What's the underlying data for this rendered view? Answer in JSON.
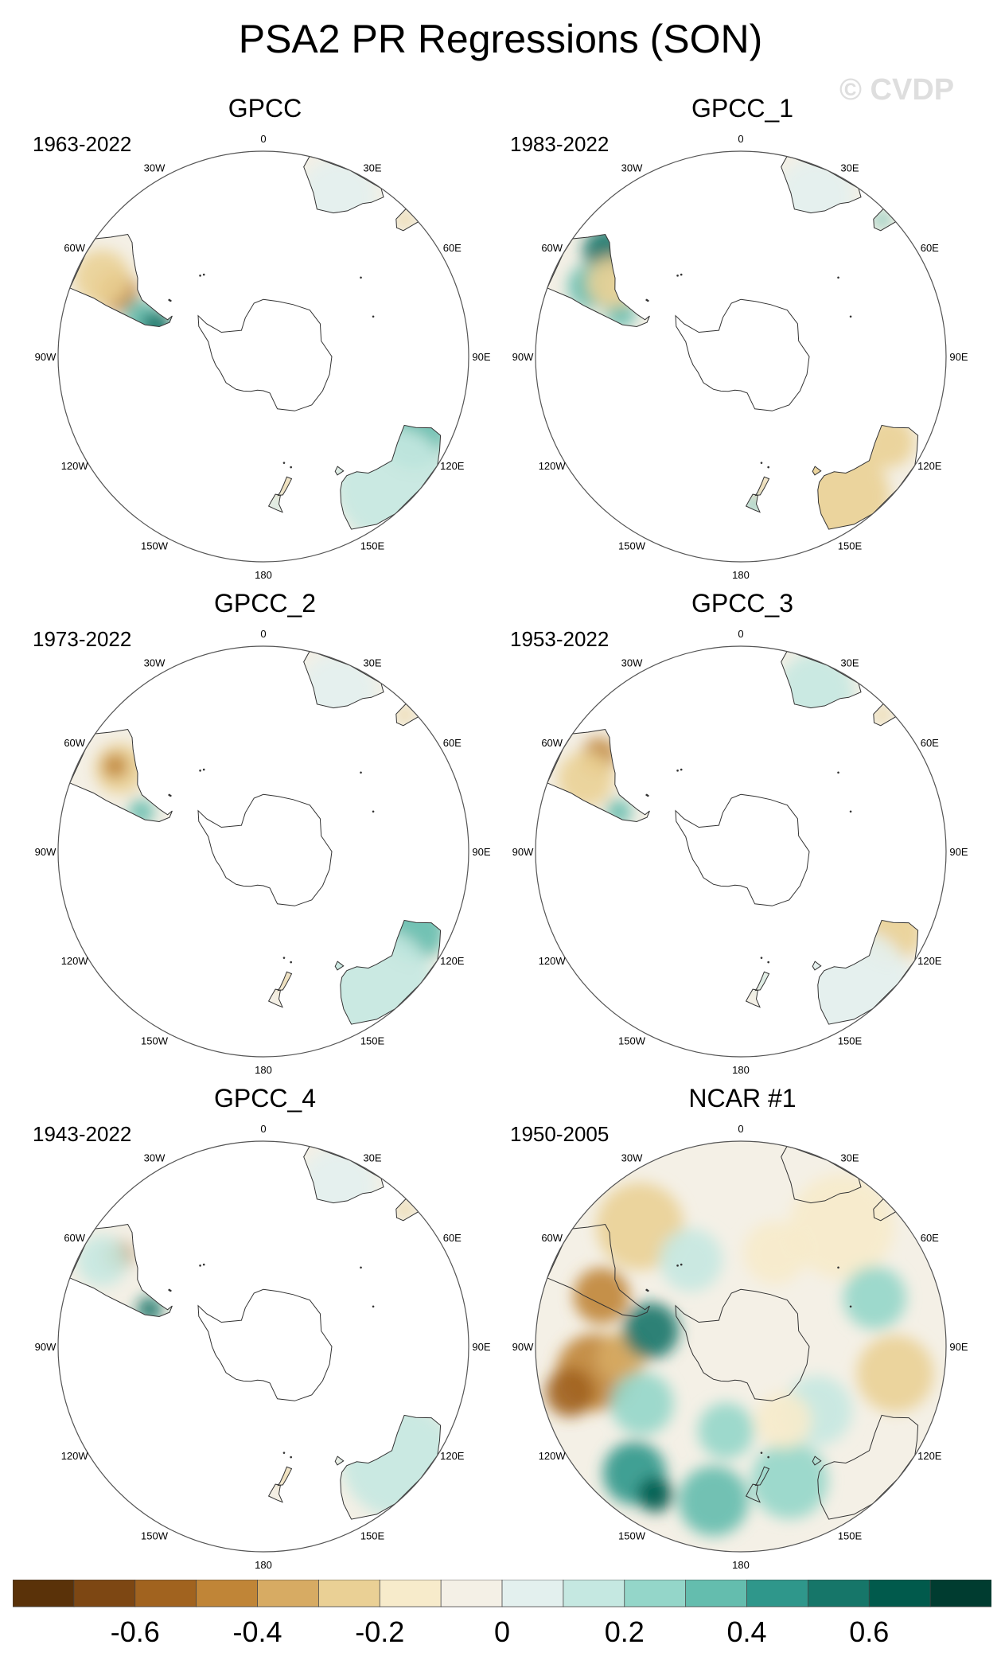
{
  "title": "PSA2 PR Regressions (SON)",
  "watermark": "© CVDP",
  "longitude_labels": [
    "0",
    "30E",
    "60E",
    "90E",
    "120E",
    "150E",
    "180",
    "150W",
    "120W",
    "90W",
    "60W",
    "30W"
  ],
  "panels": [
    {
      "name": "GPCC",
      "period": "1963-2022"
    },
    {
      "name": "GPCC_1",
      "period": "1983-2022"
    },
    {
      "name": "GPCC_2",
      "period": "1973-2022"
    },
    {
      "name": "GPCC_3",
      "period": "1953-2022"
    },
    {
      "name": "GPCC_4",
      "period": "1943-2022"
    },
    {
      "name": "NCAR #1",
      "period": "1950-2005"
    }
  ],
  "colorbar": {
    "colors": [
      "#5a3209",
      "#7d4713",
      "#a1631f",
      "#c08537",
      "#d7ab63",
      "#ead095",
      "#f7ebcb",
      "#f4f0e6",
      "#e3f0ee",
      "#c5e8e1",
      "#94d6c9",
      "#64bdae",
      "#2f978b",
      "#167669",
      "#015a4c",
      "#003c30"
    ],
    "labels": [
      "-0.6",
      "-0.4",
      "-0.2",
      "0",
      "0.2",
      "0.4",
      "0.6"
    ],
    "label_bounds": [
      2,
      4,
      6,
      8,
      10,
      12,
      14
    ]
  },
  "colors": {
    "ring": "#555555",
    "coast": "#333333",
    "brown": "#c08537",
    "tan": "#ead095",
    "teal": "#64bdae",
    "darkteal": "#167669"
  }
}
